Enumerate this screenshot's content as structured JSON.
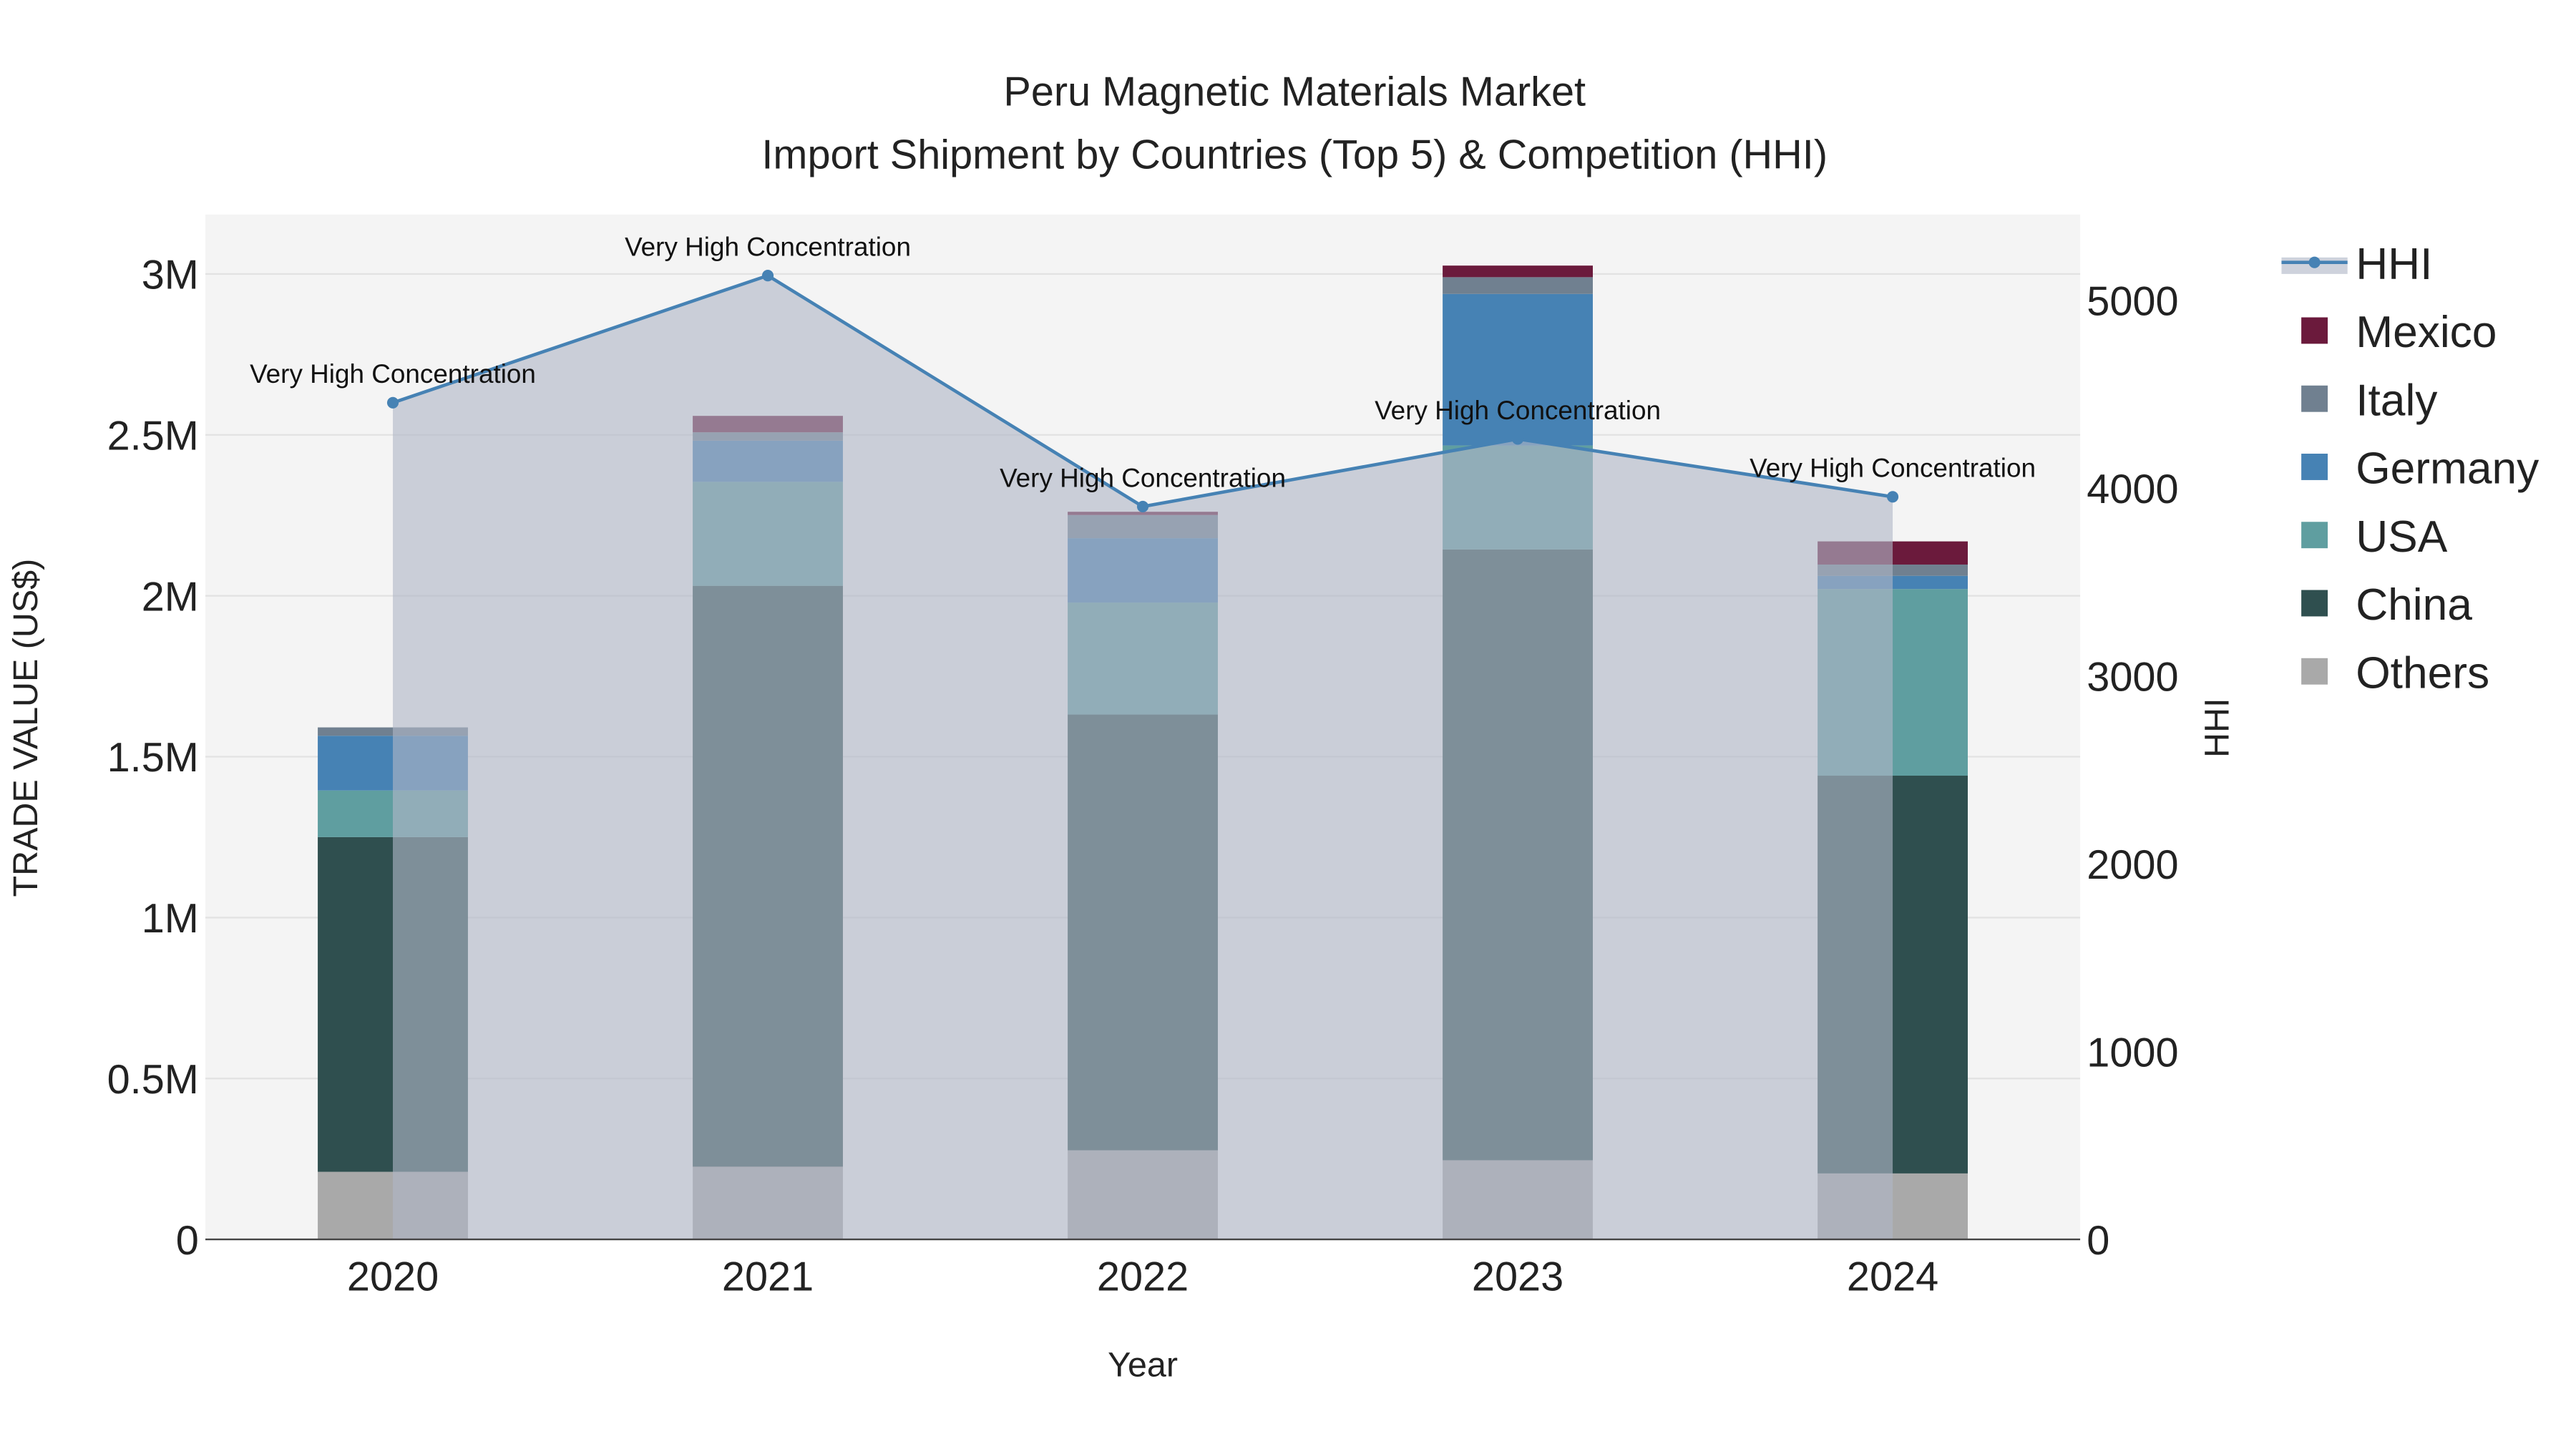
{
  "chart_data": {
    "type": "bar",
    "title_line1": "Peru Magnetic Materials Market",
    "title_line2": "Import Shipment by Countries (Top 5) & Competition (HHI)",
    "xlabel": "Year",
    "ylabel": "TRADE VALUE (US$)",
    "y2label": "HHI",
    "categories": [
      "2020",
      "2021",
      "2022",
      "2023",
      "2024"
    ],
    "ylim": [
      0,
      3180000
    ],
    "y2lim": [
      0,
      5440
    ],
    "yticks": [
      {
        "v": 0,
        "label": "0"
      },
      {
        "v": 500000,
        "label": "0.5M"
      },
      {
        "v": 1000000,
        "label": "1M"
      },
      {
        "v": 1500000,
        "label": "1.5M"
      },
      {
        "v": 2000000,
        "label": "2M"
      },
      {
        "v": 2500000,
        "label": "2.5M"
      },
      {
        "v": 3000000,
        "label": "3M"
      }
    ],
    "y2ticks": [
      {
        "v": 0,
        "label": "0"
      },
      {
        "v": 1000,
        "label": "1000"
      },
      {
        "v": 2000,
        "label": "2000"
      },
      {
        "v": 3000,
        "label": "3000"
      },
      {
        "v": 4000,
        "label": "4000"
      },
      {
        "v": 5000,
        "label": "5000"
      }
    ],
    "stacked": true,
    "series": [
      {
        "name": "Others",
        "color": "#a9a9a9",
        "values": [
          210000,
          226000,
          277000,
          246000,
          205000
        ]
      },
      {
        "name": "China",
        "color": "#2f4f4f",
        "values": [
          1040000,
          1805000,
          1354000,
          1898000,
          1236000
        ]
      },
      {
        "name": "USA",
        "color": "#5f9ea0",
        "values": [
          145000,
          323000,
          348000,
          323000,
          580000
        ]
      },
      {
        "name": "Germany",
        "color": "#4682b4",
        "values": [
          170000,
          128000,
          200000,
          471000,
          41000
        ]
      },
      {
        "name": "Italy",
        "color": "#708090",
        "values": [
          26000,
          26000,
          72000,
          52000,
          35000
        ]
      },
      {
        "name": "Mexico",
        "color": "#6b1a3c",
        "values": [
          0,
          51000,
          10000,
          36000,
          72000
        ]
      }
    ],
    "hhi": {
      "name": "HHI",
      "color": "#4682b4",
      "values": [
        4455,
        5132,
        3902,
        4262,
        3954
      ],
      "annotations": [
        "Very High Concentration",
        "Very High Concentration",
        "Very High Concentration",
        "Very High Concentration",
        "Very High Concentration"
      ]
    },
    "legend_order": [
      "HHI",
      "Mexico",
      "Italy",
      "Germany",
      "USA",
      "China",
      "Others"
    ],
    "legend_position": "right",
    "grid": true
  }
}
